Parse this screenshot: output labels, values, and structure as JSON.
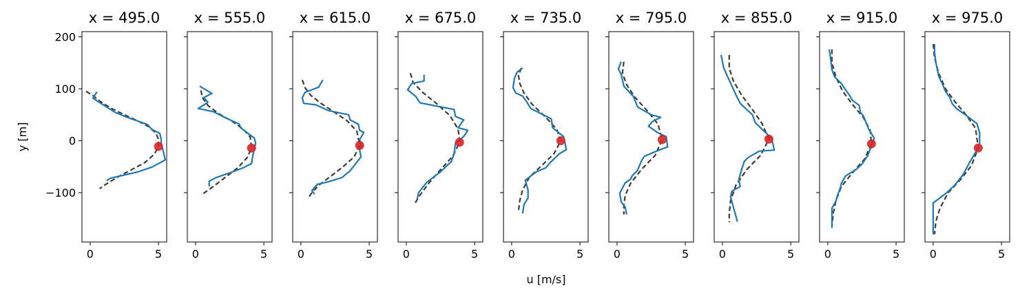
{
  "figure": {
    "xlabel": "u [m/s]",
    "ylabel": "y [m]"
  },
  "chart_data": {
    "type": "line",
    "xlim": [
      -0.6,
      5.6
    ],
    "ylim": [
      -195,
      210
    ],
    "xticks": [
      "0",
      "5"
    ],
    "yticks": [
      "200",
      "100",
      "0",
      "−100"
    ],
    "panels": [
      {
        "title": "x = 495.0",
        "center": [
          5.0,
          -11
        ],
        "observed": [
          [
            0.5,
            94
          ],
          [
            0.2,
            82
          ],
          [
            0.9,
            70
          ],
          [
            1.8,
            55
          ],
          [
            2.6,
            46
          ],
          [
            4.2,
            31
          ],
          [
            4.5,
            22
          ],
          [
            5.1,
            14
          ],
          [
            5.2,
            2
          ],
          [
            5.2,
            -5
          ],
          [
            5.3,
            -15
          ],
          [
            5.5,
            -37
          ],
          [
            4.5,
            -51
          ],
          [
            3.5,
            -60
          ],
          [
            1.5,
            -72
          ],
          [
            1.2,
            -77
          ]
        ],
        "fit": [
          [
            -0.3,
            95
          ],
          [
            0.2,
            87
          ],
          [
            0.7,
            76
          ],
          [
            1.5,
            63
          ],
          [
            2.5,
            50
          ],
          [
            3.5,
            38
          ],
          [
            4.3,
            27
          ],
          [
            4.8,
            15
          ],
          [
            5.0,
            3
          ],
          [
            5.0,
            -11
          ],
          [
            4.7,
            -26
          ],
          [
            4.0,
            -42
          ],
          [
            3.1,
            -55
          ],
          [
            2.0,
            -70
          ],
          [
            1.2,
            -83
          ],
          [
            0.7,
            -92
          ]
        ]
      },
      {
        "title": "x = 555.0",
        "center": [
          4.1,
          -14
        ],
        "observed": [
          [
            0.3,
            105
          ],
          [
            1.2,
            91
          ],
          [
            0.6,
            83
          ],
          [
            0.9,
            74
          ],
          [
            0.2,
            62
          ],
          [
            1.3,
            56
          ],
          [
            2.2,
            44
          ],
          [
            3.2,
            32
          ],
          [
            3.3,
            25
          ],
          [
            4.3,
            5
          ],
          [
            4.4,
            -5
          ],
          [
            4.2,
            -28
          ],
          [
            4.1,
            -44
          ],
          [
            3.5,
            -52
          ],
          [
            2.5,
            -62
          ],
          [
            1.5,
            -71
          ],
          [
            1.0,
            -78
          ],
          [
            1.0,
            -88
          ]
        ],
        "fit": [
          [
            0.4,
            97
          ],
          [
            0.5,
            83
          ],
          [
            0.9,
            68
          ],
          [
            1.7,
            52
          ],
          [
            2.7,
            37
          ],
          [
            3.5,
            22
          ],
          [
            4.0,
            7
          ],
          [
            4.1,
            -14
          ],
          [
            3.8,
            -32
          ],
          [
            3.1,
            -52
          ],
          [
            2.2,
            -70
          ],
          [
            1.3,
            -88
          ],
          [
            0.5,
            -103
          ]
        ]
      },
      {
        "title": "x = 615.0",
        "center": [
          4.3,
          -9
        ],
        "observed": [
          [
            1.6,
            117
          ],
          [
            1.3,
            103
          ],
          [
            0.3,
            93
          ],
          [
            0.1,
            83
          ],
          [
            0.2,
            72
          ],
          [
            1.1,
            69
          ],
          [
            2.0,
            58
          ],
          [
            3.5,
            50
          ],
          [
            3.6,
            40
          ],
          [
            4.2,
            32
          ],
          [
            4.3,
            20
          ],
          [
            4.6,
            16
          ],
          [
            4.3,
            2
          ],
          [
            4.4,
            -8
          ],
          [
            4.3,
            -18
          ],
          [
            4.4,
            -31
          ],
          [
            3.6,
            -58
          ],
          [
            3.0,
            -71
          ],
          [
            2.0,
            -79
          ],
          [
            1.2,
            -84
          ],
          [
            0.8,
            -96
          ],
          [
            1.0,
            -103
          ]
        ],
        "fit": [
          [
            0.1,
            117
          ],
          [
            0.3,
            102
          ],
          [
            0.7,
            88
          ],
          [
            1.4,
            73
          ],
          [
            2.4,
            56
          ],
          [
            3.4,
            38
          ],
          [
            4.1,
            18
          ],
          [
            4.3,
            -9
          ],
          [
            3.9,
            -31
          ],
          [
            3.0,
            -52
          ],
          [
            2.1,
            -70
          ],
          [
            1.3,
            -86
          ],
          [
            0.8,
            -100
          ],
          [
            0.5,
            -112
          ]
        ]
      },
      {
        "title": "x = 675.0",
        "center": [
          3.9,
          -3
        ],
        "observed": [
          [
            1.3,
            127
          ],
          [
            1.3,
            115
          ],
          [
            0.4,
            110
          ],
          [
            0.1,
            98
          ],
          [
            0.7,
            85
          ],
          [
            1.0,
            73
          ],
          [
            3.5,
            60
          ],
          [
            3.6,
            47
          ],
          [
            4.2,
            40
          ],
          [
            3.8,
            25
          ],
          [
            4.5,
            20
          ],
          [
            4.2,
            8
          ],
          [
            3.6,
            -5
          ],
          [
            3.5,
            -25
          ],
          [
            3.3,
            -40
          ],
          [
            2.5,
            -60
          ],
          [
            1.5,
            -80
          ],
          [
            0.9,
            -100
          ],
          [
            0.8,
            -112
          ]
        ],
        "fit": [
          [
            0.3,
            130
          ],
          [
            0.5,
            112
          ],
          [
            1.2,
            93
          ],
          [
            2.2,
            72
          ],
          [
            3.2,
            48
          ],
          [
            3.8,
            22
          ],
          [
            3.9,
            -3
          ],
          [
            3.4,
            -30
          ],
          [
            2.5,
            -56
          ],
          [
            1.7,
            -80
          ],
          [
            1.0,
            -105
          ],
          [
            0.6,
            -122
          ]
        ]
      },
      {
        "title": "x = 735.0",
        "center": [
          3.6,
          0
        ],
        "observed": [
          [
            0.8,
            140
          ],
          [
            0.4,
            132
          ],
          [
            0.2,
            120
          ],
          [
            0.1,
            102
          ],
          [
            0.3,
            92
          ],
          [
            0.8,
            86
          ],
          [
            1.1,
            75
          ],
          [
            1.4,
            62
          ],
          [
            2.9,
            42
          ],
          [
            3.0,
            25
          ],
          [
            3.8,
            8
          ],
          [
            4.0,
            -17
          ],
          [
            3.5,
            -25
          ],
          [
            2.9,
            -40
          ],
          [
            2.5,
            -52
          ],
          [
            1.8,
            -60
          ],
          [
            1.0,
            -76
          ],
          [
            1.2,
            -95
          ],
          [
            1.2,
            -110
          ],
          [
            0.9,
            -123
          ],
          [
            0.8,
            -140
          ]
        ],
        "fit": [
          [
            0.7,
            140
          ],
          [
            0.5,
            125
          ],
          [
            0.6,
            110
          ],
          [
            0.9,
            92
          ],
          [
            1.5,
            70
          ],
          [
            2.5,
            45
          ],
          [
            3.3,
            22
          ],
          [
            3.6,
            0
          ],
          [
            3.1,
            -25
          ],
          [
            2.2,
            -48
          ],
          [
            1.3,
            -70
          ],
          [
            0.8,
            -95
          ],
          [
            0.6,
            -115
          ],
          [
            0.5,
            -135
          ]
        ]
      },
      {
        "title": "x = 795.0",
        "center": [
          3.3,
          2
        ],
        "observed": [
          [
            0.3,
            152
          ],
          [
            0.1,
            138
          ],
          [
            0.3,
            128
          ],
          [
            0.5,
            105
          ],
          [
            1.2,
            85
          ],
          [
            1.5,
            65
          ],
          [
            2.5,
            50
          ],
          [
            3.2,
            45
          ],
          [
            2.6,
            37
          ],
          [
            2.3,
            28
          ],
          [
            3.0,
            15
          ],
          [
            3.6,
            8
          ],
          [
            3.7,
            -12
          ],
          [
            2.9,
            -20
          ],
          [
            2.0,
            -30
          ],
          [
            1.8,
            -38
          ],
          [
            1.5,
            -57
          ],
          [
            1.1,
            -68
          ],
          [
            1.0,
            -74
          ],
          [
            0.6,
            -81
          ],
          [
            0.2,
            -101
          ],
          [
            0.3,
            -118
          ],
          [
            0.6,
            -128
          ],
          [
            0.7,
            -142
          ]
        ],
        "fit": [
          [
            0.5,
            152
          ],
          [
            0.4,
            130
          ],
          [
            0.7,
            108
          ],
          [
            1.3,
            84
          ],
          [
            2.2,
            58
          ],
          [
            3.0,
            32
          ],
          [
            3.3,
            2
          ],
          [
            2.8,
            -28
          ],
          [
            1.8,
            -55
          ],
          [
            1.0,
            -82
          ],
          [
            0.6,
            -105
          ],
          [
            0.5,
            -125
          ],
          [
            0.5,
            -142
          ]
        ]
      },
      {
        "title": "x = 855.0",
        "center": [
          3.4,
          3
        ],
        "observed": [
          [
            -0.1,
            165
          ],
          [
            0.1,
            140
          ],
          [
            0.3,
            128
          ],
          [
            0.7,
            105
          ],
          [
            1.0,
            88
          ],
          [
            1.3,
            72
          ],
          [
            1.7,
            62
          ],
          [
            2.2,
            50
          ],
          [
            2.4,
            35
          ],
          [
            2.9,
            22
          ],
          [
            3.6,
            5
          ],
          [
            3.8,
            -18
          ],
          [
            2.7,
            -20
          ],
          [
            1.9,
            -32
          ],
          [
            1.6,
            -40
          ],
          [
            1.4,
            -56
          ],
          [
            1.2,
            -75
          ],
          [
            1.3,
            -88
          ],
          [
            0.7,
            -97
          ],
          [
            0.6,
            -108
          ],
          [
            0.8,
            -128
          ],
          [
            1.1,
            -156
          ]
        ],
        "fit": [
          [
            0.5,
            165
          ],
          [
            0.5,
            140
          ],
          [
            0.8,
            115
          ],
          [
            1.4,
            88
          ],
          [
            2.2,
            60
          ],
          [
            2.9,
            33
          ],
          [
            3.4,
            3
          ],
          [
            2.8,
            -28
          ],
          [
            1.8,
            -55
          ],
          [
            1.0,
            -85
          ],
          [
            0.6,
            -115
          ],
          [
            0.5,
            -140
          ],
          [
            0.5,
            -157
          ]
        ]
      },
      {
        "title": "x = 915.0",
        "center": [
          3.2,
          -6
        ],
        "observed": [
          [
            0.1,
            176
          ],
          [
            0.2,
            160
          ],
          [
            0.3,
            137
          ],
          [
            0.5,
            123
          ],
          [
            1.0,
            110
          ],
          [
            1.3,
            98
          ],
          [
            1.6,
            87
          ],
          [
            1.8,
            78
          ],
          [
            2.3,
            68
          ],
          [
            2.4,
            54
          ],
          [
            2.6,
            48
          ],
          [
            2.8,
            35
          ],
          [
            3.0,
            22
          ],
          [
            3.4,
            5
          ],
          [
            3.2,
            -10
          ],
          [
            2.9,
            -30
          ],
          [
            2.5,
            -45
          ],
          [
            2.1,
            -55
          ],
          [
            1.3,
            -68
          ],
          [
            1.0,
            -82
          ],
          [
            0.9,
            -92
          ],
          [
            0.7,
            -106
          ],
          [
            0.6,
            -116
          ],
          [
            0.3,
            -130
          ],
          [
            0.3,
            -152
          ],
          [
            0.3,
            -168
          ]
        ],
        "fit": [
          [
            0.3,
            176
          ],
          [
            0.3,
            150
          ],
          [
            0.6,
            122
          ],
          [
            1.1,
            95
          ],
          [
            1.8,
            70
          ],
          [
            2.6,
            45
          ],
          [
            3.1,
            20
          ],
          [
            3.2,
            -6
          ],
          [
            2.7,
            -35
          ],
          [
            1.8,
            -62
          ],
          [
            1.0,
            -88
          ],
          [
            0.6,
            -115
          ],
          [
            0.4,
            -140
          ],
          [
            0.3,
            -166
          ]
        ]
      },
      {
        "title": "x = 975.0",
        "center": [
          3.3,
          -14
        ],
        "observed": [
          [
            0.1,
            186
          ],
          [
            0.1,
            170
          ],
          [
            0.2,
            150
          ],
          [
            0.4,
            125
          ],
          [
            0.7,
            108
          ],
          [
            0.9,
            95
          ],
          [
            1.2,
            84
          ],
          [
            1.4,
            71
          ],
          [
            1.7,
            62
          ],
          [
            2.3,
            51
          ],
          [
            3.2,
            33
          ],
          [
            3.4,
            15
          ],
          [
            3.4,
            -5
          ],
          [
            3.3,
            -14
          ],
          [
            2.7,
            -40
          ],
          [
            2.2,
            -65
          ],
          [
            1.6,
            -85
          ],
          [
            1.0,
            -100
          ],
          [
            0.0,
            -120
          ],
          [
            0.0,
            -150
          ],
          [
            0.0,
            -180
          ]
        ],
        "fit": [
          [
            0.0,
            186
          ],
          [
            0.1,
            160
          ],
          [
            0.4,
            130
          ],
          [
            0.9,
            100
          ],
          [
            1.6,
            75
          ],
          [
            2.4,
            50
          ],
          [
            3.1,
            24
          ],
          [
            3.3,
            -14
          ],
          [
            2.8,
            -48
          ],
          [
            2.0,
            -75
          ],
          [
            1.1,
            -100
          ],
          [
            0.5,
            -130
          ],
          [
            0.2,
            -155
          ],
          [
            0.1,
            -180
          ]
        ]
      }
    ]
  }
}
